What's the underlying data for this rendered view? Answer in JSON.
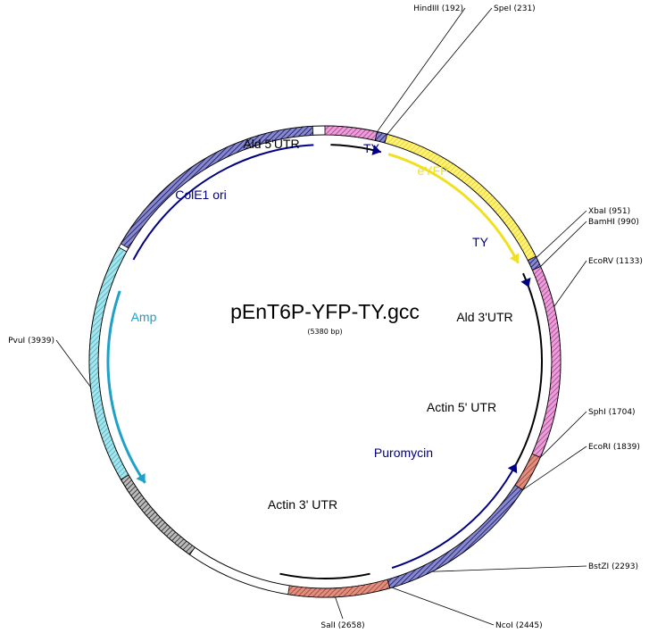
{
  "plasmid": {
    "name": "pEnT6P-YFP-TY.gcc",
    "size_label": "(5380 bp)"
  },
  "restriction_sites": [
    {
      "id": "hindiii",
      "label": "HindIII (192)"
    },
    {
      "id": "spei",
      "label": "SpeI (231)"
    },
    {
      "id": "xbai",
      "label": "XbaI (951)"
    },
    {
      "id": "bamhi",
      "label": "BamHI (990)"
    },
    {
      "id": "ecorv",
      "label": "EcoRV (1133)"
    },
    {
      "id": "sphi",
      "label": "SphI (1704)"
    },
    {
      "id": "ecori",
      "label": "EcoRI (1839)"
    },
    {
      "id": "bstzi",
      "label": "BstZI (2293)"
    },
    {
      "id": "ncoi",
      "label": "NcoI (2445)"
    },
    {
      "id": "sali",
      "label": "SalI (2658)"
    },
    {
      "id": "pvui",
      "label": "PvuI (3939)"
    }
  ],
  "features": [
    {
      "id": "ald5utr",
      "label": "Ald 5'UTR",
      "color": "#000000"
    },
    {
      "id": "ty1",
      "label": "TY",
      "color": "#000080"
    },
    {
      "id": "eyfp",
      "label": "eYFP",
      "color": "#f0e020"
    },
    {
      "id": "ty2",
      "label": "TY",
      "color": "#000080"
    },
    {
      "id": "ald3utr",
      "label": "Ald 3'UTR",
      "color": "#000000"
    },
    {
      "id": "actin5utr",
      "label": "Actin 5' UTR",
      "color": "#000000"
    },
    {
      "id": "puromycin",
      "label": "Puromycin",
      "color": "#000080"
    },
    {
      "id": "actin3utr",
      "label": "Actin 3' UTR",
      "color": "#000000"
    },
    {
      "id": "amp",
      "label": "Amp",
      "color": "#1ea0c8"
    },
    {
      "id": "cole1ori",
      "label": "ColE1 ori",
      "color": "#000080"
    }
  ]
}
